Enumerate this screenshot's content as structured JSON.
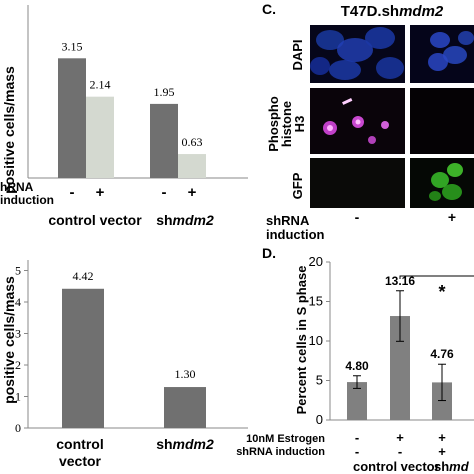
{
  "panel_c": {
    "letter": "C.",
    "title": "T47D.sh",
    "title_italic": "mdm2",
    "row_labels": [
      "DAPI",
      "Phospho\nhistone\nH3",
      "GFP"
    ],
    "row_label_lines": {
      "dapi": "DAPI",
      "ph1": "Phospho",
      "ph2": "histone",
      "ph3": "H3",
      "gfp": "GFP"
    },
    "shrna_label": "shRNA",
    "induction_label": "induction",
    "minus": "-",
    "plus": "+"
  },
  "panel_d": {
    "letter": "D.",
    "star": "*"
  },
  "panel_a_labels": {
    "ylabel": "positive cells/mass",
    "shrna": "hRNA",
    "induction": "induction",
    "control_vector": "control vector",
    "shmdm2_prefix": "sh",
    "shmdm2_italic": "mdm2"
  },
  "panel_b_labels": {
    "ylabel": "positive cells/mass",
    "control_line1": "control",
    "control_line2": "vector",
    "shmdm2_prefix": "sh",
    "shmdm2_italic": "mdm2"
  },
  "panel_d_labels": {
    "estrogen": "10nM Estrogen",
    "shrna_induction": "shRNA induction",
    "control_vector": "control vector",
    "shmdm2_partial": "shmd"
  },
  "colors": {
    "dark_bar": "#707070",
    "light_bar": "#d4d9d0",
    "d_bar": "#808080",
    "dapi": "#1133aa",
    "ph3": "#cc33cc",
    "gfp": "#33cc22"
  },
  "chart_data": [
    {
      "type": "bar",
      "panel": "top-left",
      "categories": [
        "control vector",
        "shmdm2"
      ],
      "series": [
        {
          "name": "-",
          "values": [
            3.15,
            1.95
          ]
        },
        {
          "name": "+",
          "values": [
            2.14,
            0.63
          ]
        }
      ],
      "ylabel": "positive cells/mass",
      "xlabel": "shRNA induction",
      "ylim": [
        0,
        3.5
      ],
      "grid": false,
      "data_labels": [
        "3.15",
        "2.14",
        "1.95",
        "0.63"
      ],
      "minus_plus": [
        "-",
        "+",
        "-",
        "+"
      ]
    },
    {
      "type": "bar",
      "panel": "bottom-left",
      "categories": [
        "control vector",
        "shmdm2"
      ],
      "values": [
        4.42,
        1.3
      ],
      "ylabel": "positive cells/mass",
      "ylim": [
        0,
        5
      ],
      "yticks": [
        "0",
        "1",
        "2",
        "3",
        "4",
        "5"
      ],
      "data_labels": [
        "4.42",
        "1.30"
      ],
      "grid": false
    },
    {
      "type": "bar",
      "panel": "D",
      "categories": [
        "control vector -",
        "control vector +",
        "shmdm2 +"
      ],
      "values": [
        4.8,
        13.16,
        4.76
      ],
      "error": [
        0.8,
        3.2,
        2.3
      ],
      "ylabel": "Percent cells in S phase",
      "ylim": [
        0,
        20
      ],
      "yticks": [
        "0",
        "5",
        "10",
        "15",
        "20"
      ],
      "data_labels": [
        "4.80",
        "13.16",
        "4.76"
      ],
      "estrogen_row": [
        "-",
        "+",
        "+"
      ],
      "shrna_row": [
        "-",
        "-",
        "+"
      ],
      "grid": false
    }
  ]
}
